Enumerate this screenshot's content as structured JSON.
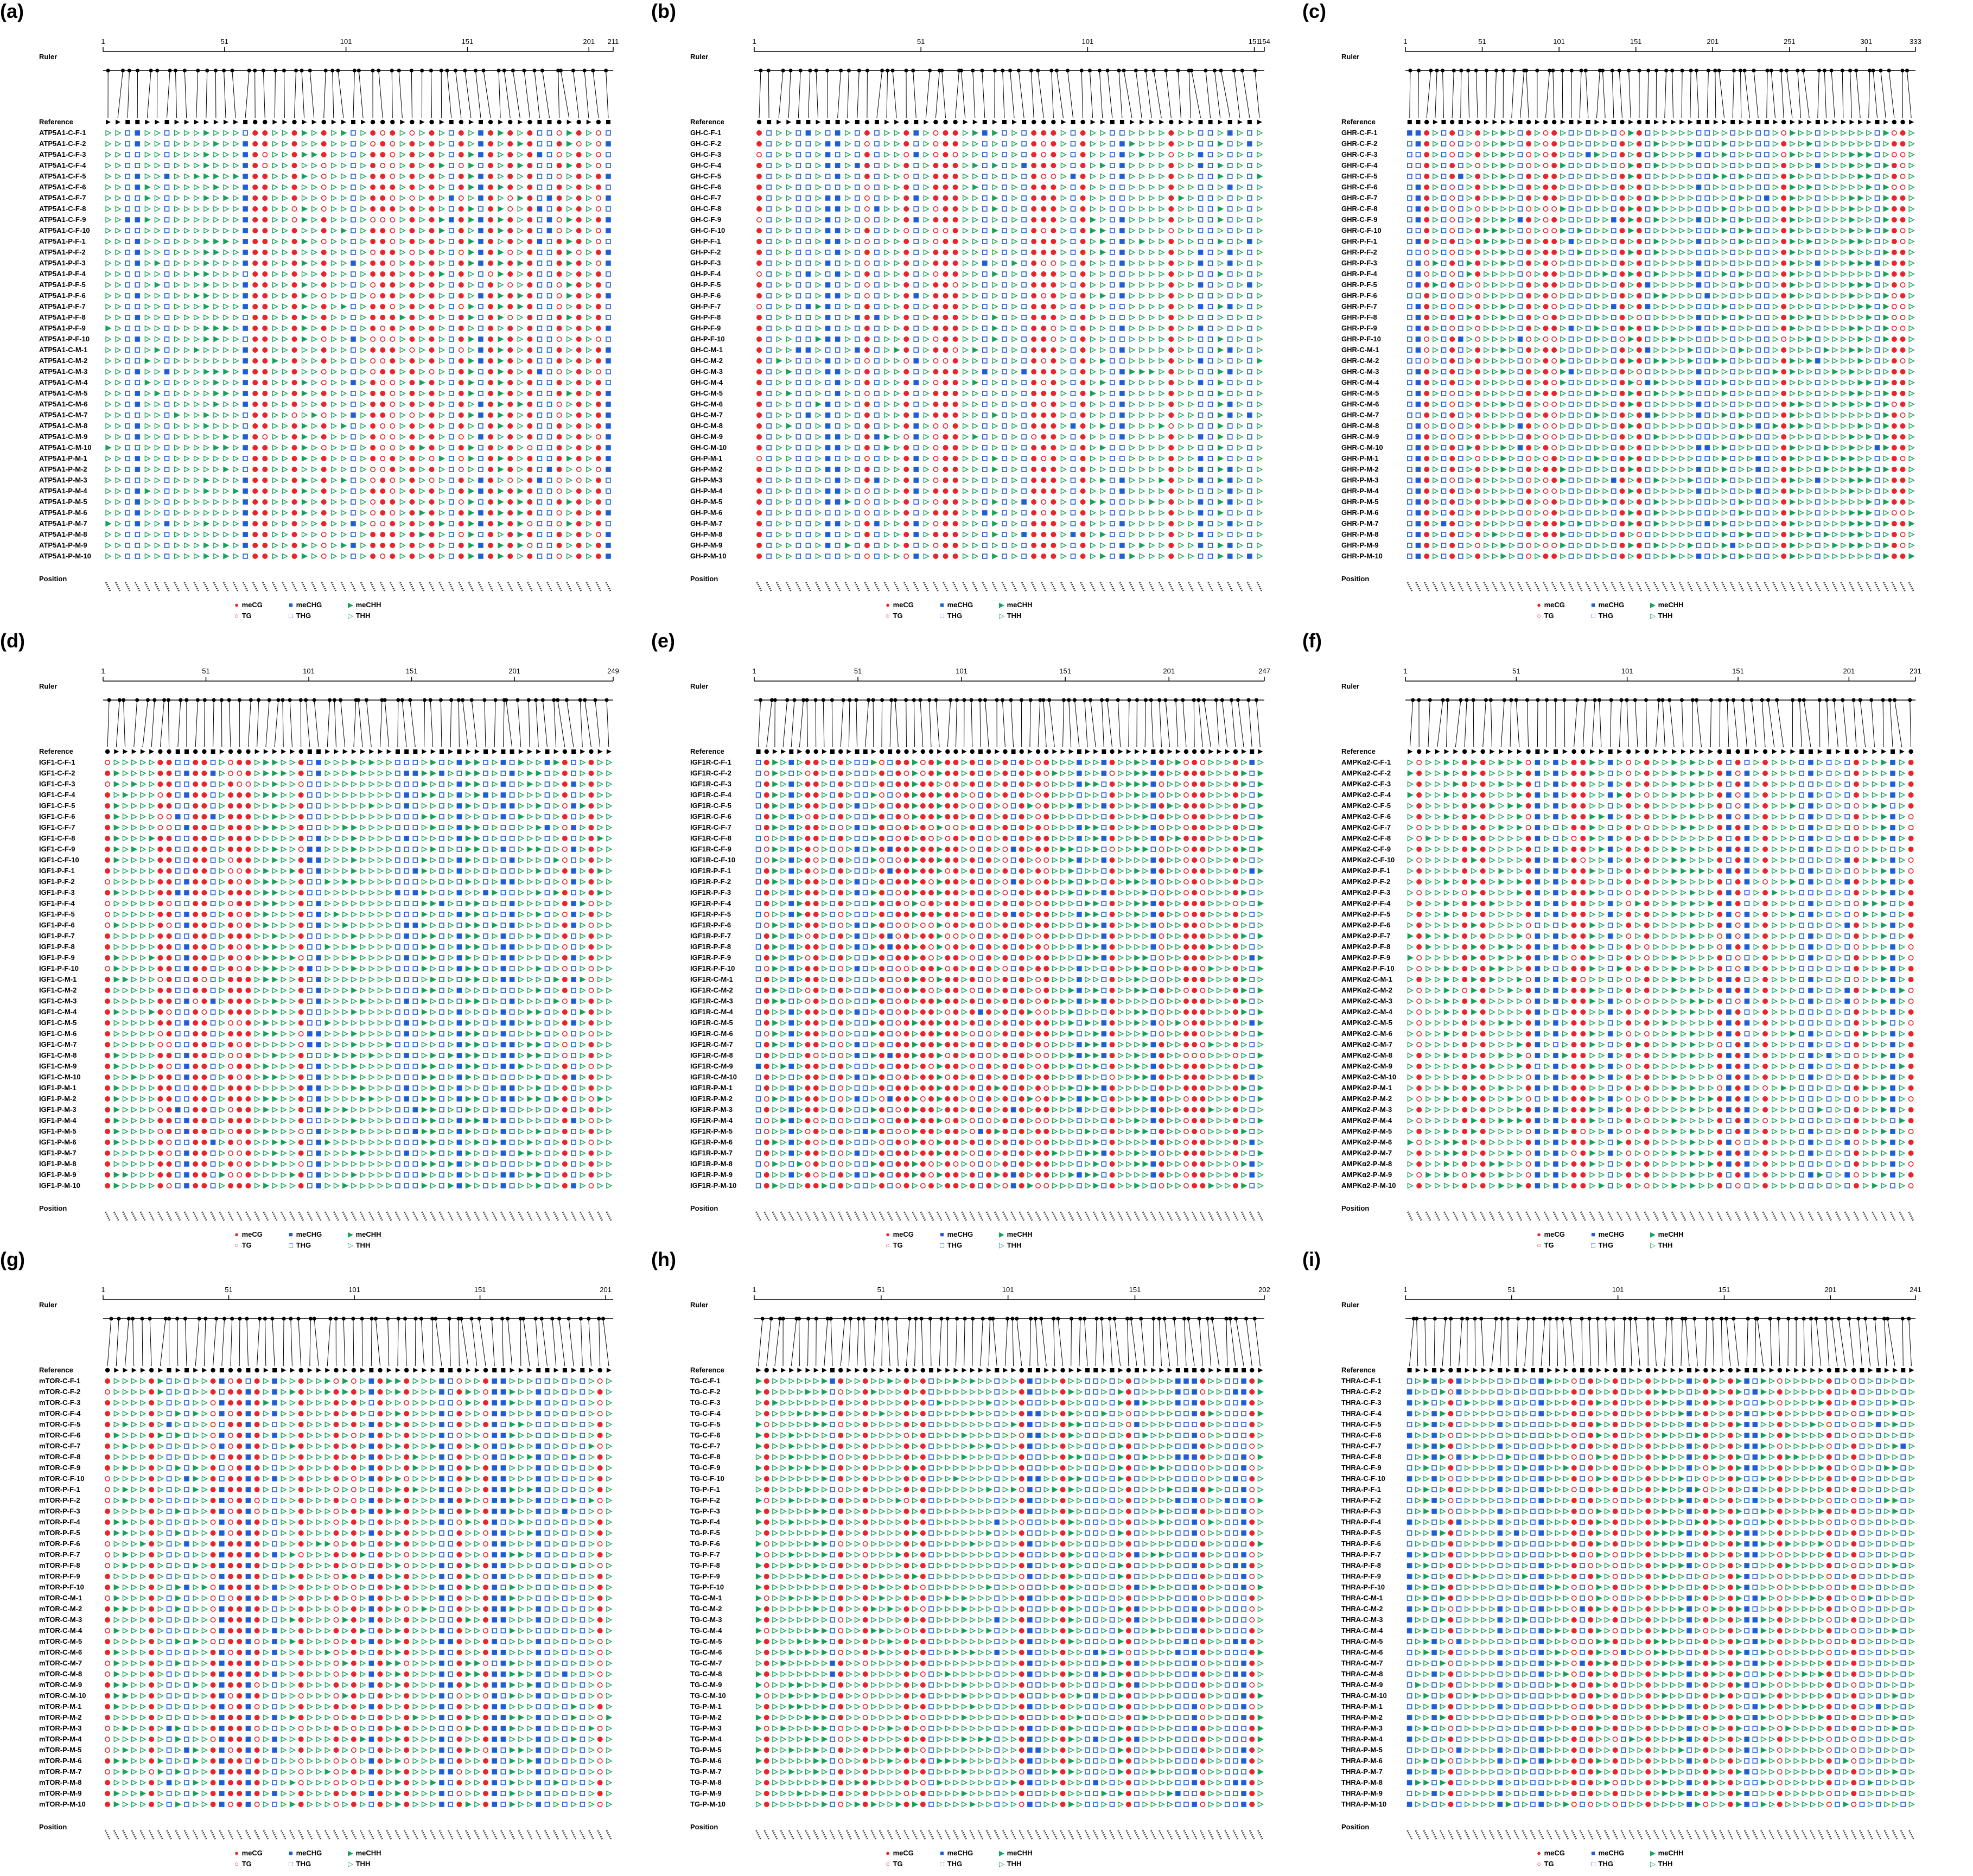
{
  "labels": {
    "ruler": "Ruler",
    "reference": "Reference",
    "position": "Position"
  },
  "legend": {
    "mcg": "meCG",
    "tg": "TG",
    "mchg": "meCHG",
    "thg": "THG",
    "mchh": "meCHH",
    "thh": "THH"
  },
  "colors": {
    "cg": "#e8262b",
    "chg": "#1f5fd6",
    "chh": "#17a35a",
    "ink": "#000000"
  },
  "sample_suffixes": [
    "C-F-1",
    "C-F-2",
    "C-F-3",
    "C-F-4",
    "C-F-5",
    "C-F-6",
    "C-F-7",
    "C-F-8",
    "C-F-9",
    "C-F-10",
    "P-F-1",
    "P-F-2",
    "P-F-3",
    "P-F-4",
    "P-F-5",
    "P-F-6",
    "P-F-7",
    "P-F-8",
    "P-F-9",
    "P-F-10",
    "C-M-1",
    "C-M-2",
    "C-M-3",
    "C-M-4",
    "C-M-5",
    "C-M-6",
    "C-M-7",
    "C-M-8",
    "C-M-9",
    "C-M-10",
    "P-M-1",
    "P-M-2",
    "P-M-3",
    "P-M-4",
    "P-M-5",
    "P-M-6",
    "P-M-7",
    "P-M-8",
    "P-M-9",
    "P-M-10"
  ],
  "panels": [
    {
      "label": "(a)",
      "gene": "ATP5A1",
      "ruler_ticks": [
        "1",
        "51",
        "101",
        "151",
        "201",
        "211"
      ],
      "ruler_values": [
        1,
        51,
        101,
        151,
        201,
        211
      ],
      "length": 211,
      "n_sites": 52
    },
    {
      "label": "(b)",
      "gene": "GH",
      "ruler_ticks": [
        "1",
        "51",
        "101",
        "151",
        "154"
      ],
      "ruler_values": [
        1,
        51,
        101,
        151,
        154
      ],
      "length": 154,
      "n_sites": 52
    },
    {
      "label": "(c)",
      "gene": "GHR",
      "ruler_ticks": [
        "1",
        "51",
        "101",
        "151",
        "201",
        "251",
        "301",
        "333"
      ],
      "ruler_values": [
        1,
        51,
        101,
        151,
        201,
        251,
        301,
        333
      ],
      "length": 333,
      "n_sites": 60
    },
    {
      "label": "(d)",
      "gene": "IGF1",
      "ruler_ticks": [
        "1",
        "51",
        "101",
        "151",
        "201",
        "249"
      ],
      "ruler_values": [
        1,
        51,
        101,
        151,
        201,
        249
      ],
      "length": 249,
      "n_sites": 58
    },
    {
      "label": "(e)",
      "gene": "IGF1R",
      "ruler_ticks": [
        "1",
        "51",
        "101",
        "151",
        "201",
        "247"
      ],
      "ruler_values": [
        1,
        51,
        101,
        151,
        201,
        247
      ],
      "length": 247,
      "n_sites": 62
    },
    {
      "label": "(f)",
      "gene": "AMPKα2",
      "ruler_ticks": [
        "1",
        "51",
        "101",
        "151",
        "201",
        "231"
      ],
      "ruler_values": [
        1,
        51,
        101,
        151,
        201,
        231
      ],
      "length": 231,
      "n_sites": 56
    },
    {
      "label": "(g)",
      "gene": "mTOR",
      "ruler_ticks": [
        "1",
        "51",
        "101",
        "151",
        "201"
      ],
      "ruler_values": [
        1,
        51,
        101,
        151,
        201
      ],
      "length": 204,
      "n_sites": 58
    },
    {
      "label": "(h)",
      "gene": "TG",
      "ruler_ticks": [
        "1",
        "51",
        "101",
        "151",
        "202"
      ],
      "ruler_values": [
        1,
        51,
        101,
        151,
        202
      ],
      "length": 202,
      "n_sites": 62
    },
    {
      "label": "(i)",
      "gene": "THRA",
      "ruler_ticks": [
        "1",
        "51",
        "101",
        "151",
        "201",
        "241"
      ],
      "ruler_values": [
        1,
        51,
        101,
        151,
        201,
        241
      ],
      "length": 241,
      "n_sites": 62
    }
  ]
}
